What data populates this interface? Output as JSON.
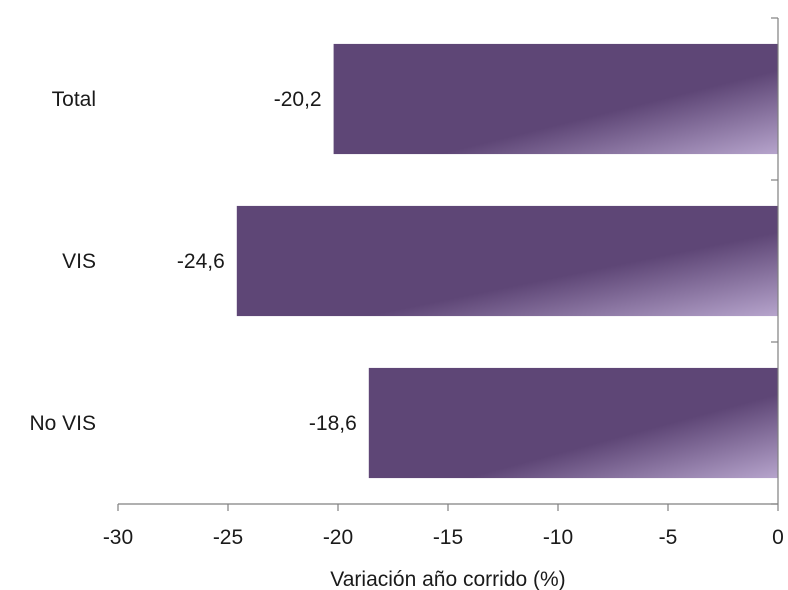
{
  "chart_data": {
    "type": "bar",
    "orientation": "horizontal",
    "categories": [
      "Total",
      "VIS",
      "No VIS"
    ],
    "values": [
      -20.2,
      -24.6,
      -18.6
    ],
    "data_labels": [
      "-20,2",
      "-24,6",
      "-18,6"
    ],
    "xlim": [
      -30,
      0
    ],
    "x_ticks": [
      -30,
      -25,
      -20,
      -15,
      -10,
      -5,
      0
    ],
    "x_tick_labels": [
      "-30",
      "-25",
      "-20",
      "-15",
      "-10",
      "-5",
      "0"
    ],
    "title": "",
    "xlabel": "Variación año corrido (%)",
    "ylabel": "",
    "grid": false,
    "legend": "none",
    "bar_color_dark": "#5e4676",
    "bar_color_light": "#b6a4cc"
  }
}
